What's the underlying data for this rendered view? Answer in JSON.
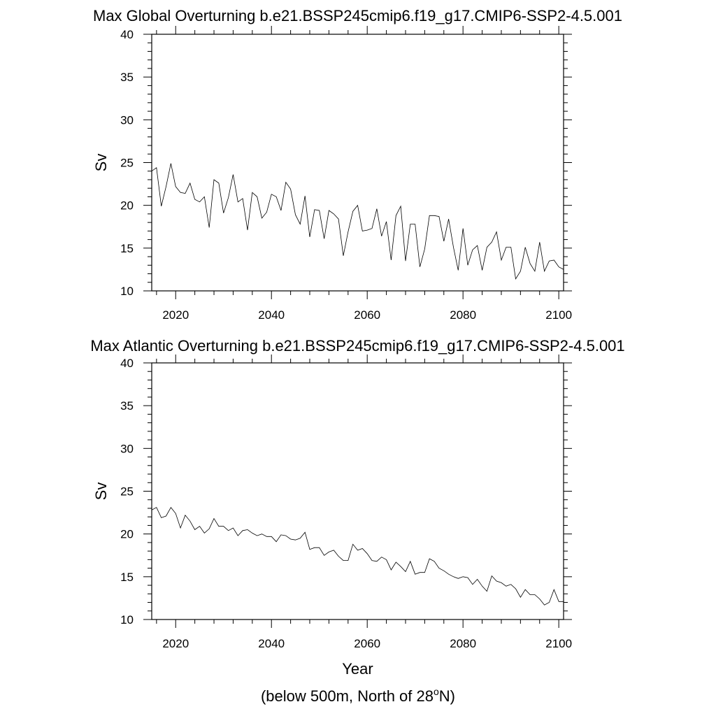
{
  "chart_data": [
    {
      "type": "line",
      "title": "Max Global Overturning b.e21.BSSP245cmip6.f19_g17.CMIP6-SSP2-4.5.001",
      "ylabel": "Sv",
      "xlabel": "",
      "xlim": [
        2015,
        2101
      ],
      "ylim": [
        10,
        40
      ],
      "xticks": [
        2020,
        2040,
        2060,
        2080,
        2100
      ],
      "yticks": [
        10,
        15,
        20,
        25,
        30,
        35,
        40
      ],
      "grid": false,
      "x": [
        2015,
        2016,
        2017,
        2018,
        2019,
        2020,
        2021,
        2022,
        2023,
        2024,
        2025,
        2026,
        2027,
        2028,
        2029,
        2030,
        2031,
        2032,
        2033,
        2034,
        2035,
        2036,
        2037,
        2038,
        2039,
        2040,
        2041,
        2042,
        2043,
        2044,
        2045,
        2046,
        2047,
        2048,
        2049,
        2050,
        2051,
        2052,
        2053,
        2054,
        2055,
        2056,
        2057,
        2058,
        2059,
        2060,
        2061,
        2062,
        2063,
        2064,
        2065,
        2066,
        2067,
        2068,
        2069,
        2070,
        2071,
        2072,
        2073,
        2074,
        2075,
        2076,
        2077,
        2078,
        2079,
        2080,
        2081,
        2082,
        2083,
        2084,
        2085,
        2086,
        2087,
        2088,
        2089,
        2090,
        2091,
        2092,
        2093,
        2094,
        2095,
        2096,
        2097,
        2098,
        2099,
        2100,
        2101
      ],
      "series": [
        {
          "values": [
            24.0,
            24.4,
            19.9,
            22.2,
            24.9,
            22.2,
            21.5,
            21.4,
            22.6,
            20.7,
            20.4,
            21.0,
            17.4,
            23.0,
            22.6,
            19.1,
            20.9,
            23.6,
            20.4,
            20.8,
            17.1,
            21.5,
            21.0,
            18.5,
            19.2,
            21.3,
            21.0,
            19.4,
            22.7,
            21.9,
            18.9,
            17.8,
            21.1,
            16.3,
            19.5,
            19.4,
            16.1,
            19.4,
            19.0,
            18.4,
            14.1,
            16.9,
            19.3,
            20.0,
            17.0,
            17.1,
            17.3,
            19.6,
            16.4,
            18.1,
            13.6,
            18.8,
            19.9,
            13.5,
            17.8,
            17.8,
            12.8,
            14.9,
            18.8,
            18.8,
            18.7,
            15.8,
            18.4,
            15.1,
            12.4,
            17.3,
            13.0,
            14.8,
            15.3,
            12.4,
            15.1,
            15.7,
            16.9,
            13.6,
            15.1,
            15.1,
            11.4,
            12.3,
            15.1,
            13.2,
            12.3,
            15.7,
            12.3,
            13.5,
            13.6,
            12.8,
            12.5
          ]
        }
      ]
    },
    {
      "type": "line",
      "title": "Max Atlantic Overturning b.e21.BSSP245cmip6.f19_g17.CMIP6-SSP2-4.5.001",
      "ylabel": "Sv",
      "xlabel": "Year",
      "caption_prefix": "(below 500m, North of 28",
      "caption_sup": "o",
      "caption_suffix": "N)",
      "xlim": [
        2015,
        2101
      ],
      "ylim": [
        10,
        40
      ],
      "xticks": [
        2020,
        2040,
        2060,
        2080,
        2100
      ],
      "yticks": [
        10,
        15,
        20,
        25,
        30,
        35,
        40
      ],
      "grid": false,
      "x": [
        2015,
        2016,
        2017,
        2018,
        2019,
        2020,
        2021,
        2022,
        2023,
        2024,
        2025,
        2026,
        2027,
        2028,
        2029,
        2030,
        2031,
        2032,
        2033,
        2034,
        2035,
        2036,
        2037,
        2038,
        2039,
        2040,
        2041,
        2042,
        2043,
        2044,
        2045,
        2046,
        2047,
        2048,
        2049,
        2050,
        2051,
        2052,
        2053,
        2054,
        2055,
        2056,
        2057,
        2058,
        2059,
        2060,
        2061,
        2062,
        2063,
        2064,
        2065,
        2066,
        2067,
        2068,
        2069,
        2070,
        2071,
        2072,
        2073,
        2074,
        2075,
        2076,
        2077,
        2078,
        2079,
        2080,
        2081,
        2082,
        2083,
        2084,
        2085,
        2086,
        2087,
        2088,
        2089,
        2090,
        2091,
        2092,
        2093,
        2094,
        2095,
        2096,
        2097,
        2098,
        2099,
        2100,
        2101
      ],
      "series": [
        {
          "values": [
            22.8,
            23.1,
            21.9,
            22.1,
            23.1,
            22.4,
            20.7,
            22.2,
            21.5,
            20.5,
            20.9,
            20.1,
            20.6,
            21.8,
            20.9,
            20.9,
            20.4,
            20.7,
            19.8,
            20.4,
            20.5,
            20.1,
            19.8,
            20.0,
            19.7,
            19.7,
            19.1,
            19.9,
            19.8,
            19.4,
            19.3,
            19.5,
            20.2,
            18.2,
            18.4,
            18.4,
            17.5,
            17.9,
            18.1,
            17.4,
            16.9,
            16.9,
            18.8,
            18.1,
            18.3,
            17.7,
            16.9,
            16.8,
            17.3,
            17.0,
            15.8,
            16.7,
            16.2,
            15.6,
            16.8,
            15.3,
            15.5,
            15.5,
            17.1,
            16.8,
            16.0,
            15.7,
            15.3,
            15.0,
            14.8,
            15.0,
            14.9,
            14.1,
            14.7,
            13.9,
            13.3,
            15.1,
            14.5,
            14.3,
            13.9,
            14.1,
            13.6,
            12.6,
            13.5,
            12.9,
            12.9,
            12.4,
            11.7,
            12.0,
            13.5,
            12.1,
            12.1
          ]
        }
      ]
    }
  ]
}
